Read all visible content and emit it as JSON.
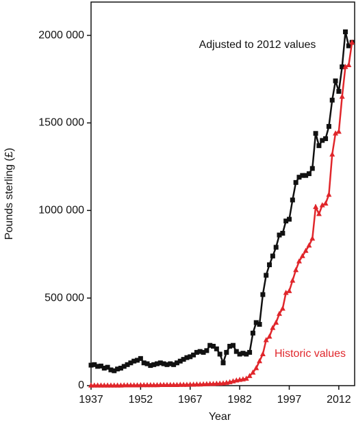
{
  "chart_data": {
    "type": "line",
    "x_label": "Year",
    "y_label": "Pounds sterling (£)",
    "x": [
      1937,
      1938,
      1939,
      1940,
      1941,
      1942,
      1943,
      1944,
      1945,
      1946,
      1947,
      1948,
      1949,
      1950,
      1951,
      1952,
      1953,
      1954,
      1955,
      1956,
      1957,
      1958,
      1959,
      1960,
      1961,
      1962,
      1963,
      1964,
      1965,
      1966,
      1967,
      1968,
      1969,
      1970,
      1971,
      1972,
      1973,
      1974,
      1975,
      1976,
      1977,
      1978,
      1979,
      1980,
      1981,
      1982,
      1983,
      1984,
      1985,
      1986,
      1987,
      1988,
      1989,
      1990,
      1991,
      1992,
      1993,
      1994,
      1995,
      1996,
      1997,
      1998,
      1999,
      2000,
      2001,
      2002,
      2003,
      2004,
      2005,
      2006,
      2007,
      2008,
      2009,
      2010,
      2011,
      2012,
      2013,
      2014,
      2015,
      2016
    ],
    "series": [
      {
        "name": "Adjusted to 2012 values",
        "color": "#111111",
        "marker": "square",
        "values": [
          117000,
          120000,
          110000,
          112000,
          100000,
          105000,
          90000,
          85000,
          95000,
          100000,
          110000,
          120000,
          130000,
          140000,
          145000,
          155000,
          130000,
          125000,
          115000,
          120000,
          125000,
          130000,
          125000,
          120000,
          125000,
          120000,
          130000,
          140000,
          150000,
          160000,
          165000,
          175000,
          190000,
          195000,
          190000,
          200000,
          230000,
          225000,
          210000,
          180000,
          130000,
          190000,
          225000,
          230000,
          195000,
          180000,
          185000,
          180000,
          190000,
          300000,
          360000,
          350000,
          520000,
          630000,
          690000,
          740000,
          790000,
          860000,
          870000,
          940000,
          950000,
          1060000,
          1160000,
          1190000,
          1200000,
          1200000,
          1210000,
          1240000,
          1440000,
          1370000,
          1400000,
          1410000,
          1480000,
          1630000,
          1740000,
          1680000,
          1820000,
          2020000,
          1940000,
          1960000
        ]
      },
      {
        "name": "Historic values",
        "color": "#e0262b",
        "marker": "triangle",
        "values": [
          1000,
          1000,
          1000,
          1000,
          1000,
          1000,
          1000,
          1000,
          1000,
          1000,
          2000,
          2000,
          2000,
          2000,
          2000,
          3000,
          3000,
          3000,
          3000,
          3000,
          3000,
          4000,
          4000,
          4000,
          4000,
          4000,
          4000,
          5000,
          5000,
          5000,
          6000,
          6000,
          7000,
          7000,
          8000,
          9000,
          10000,
          10000,
          11000,
          12000,
          13000,
          16000,
          20000,
          25000,
          30000,
          33000,
          36000,
          40000,
          55000,
          75000,
          100000,
          140000,
          180000,
          260000,
          280000,
          330000,
          360000,
          410000,
          440000,
          530000,
          540000,
          600000,
          660000,
          710000,
          740000,
          770000,
          800000,
          840000,
          1020000,
          980000,
          1030000,
          1040000,
          1090000,
          1320000,
          1440000,
          1450000,
          1650000,
          1820000,
          1830000,
          1960000
        ]
      }
    ],
    "xlim": [
      1937,
      2017
    ],
    "xticks": [
      1937,
      1952,
      1967,
      1982,
      1997,
      2012
    ],
    "ylim": [
      0,
      2190000
    ],
    "yticks": [
      0,
      {
        "value": 500000,
        "label": "500 000"
      },
      {
        "value": 1000000,
        "label": "1000 000"
      },
      {
        "value": 1500000,
        "label": "1500 000"
      },
      {
        "value": 2000000,
        "label": "2000 000"
      }
    ]
  }
}
